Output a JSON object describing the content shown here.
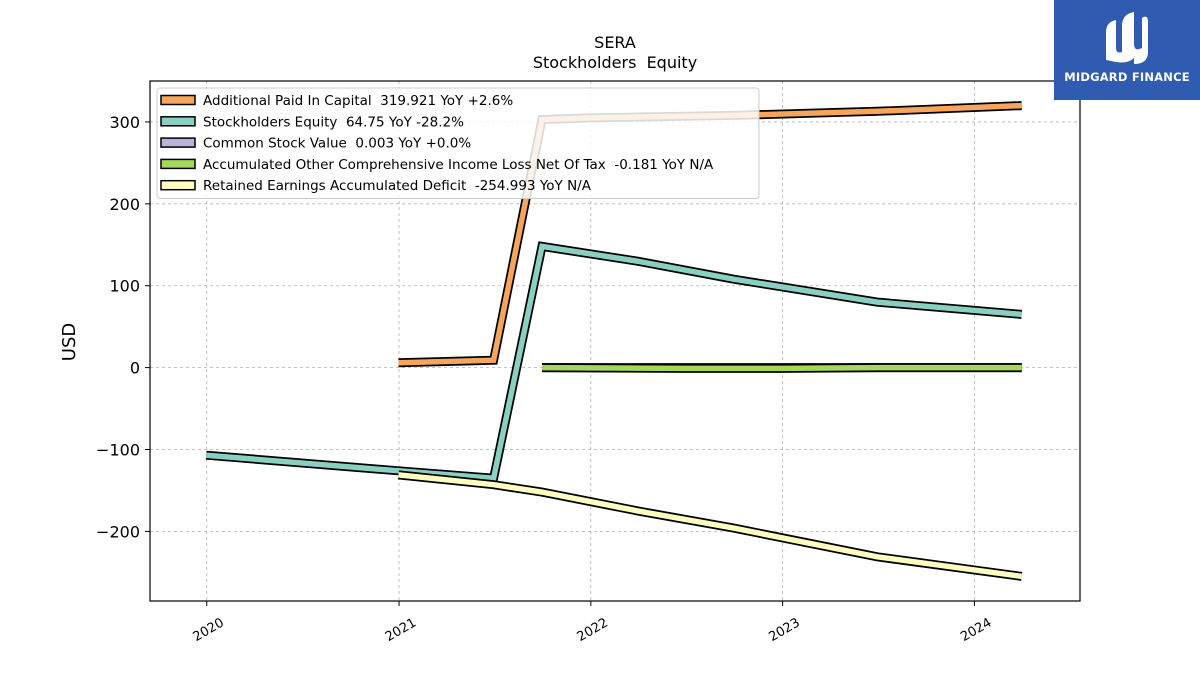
{
  "logo": {
    "text": "MIDGARD FINANCE"
  },
  "chart_data": {
    "type": "line",
    "title": "SERA",
    "subtitle": "Stockholders  Equity",
    "ylabel": "USD",
    "xlabel": "",
    "xlim": [
      "2019-09-15",
      "2024-07-20"
    ],
    "ylim": [
      -285,
      350
    ],
    "x_ticks": [
      "2020-01-01",
      "2021-01-01",
      "2022-01-01",
      "2023-01-01",
      "2024-01-01"
    ],
    "x_tick_labels": [
      "2020",
      "2021",
      "2022",
      "2023",
      "2024"
    ],
    "y_ticks": [
      -200,
      -100,
      0,
      100,
      200,
      300
    ],
    "y_tick_labels": [
      "−200",
      "−100",
      "0",
      "100",
      "200",
      "300"
    ],
    "grid": true,
    "legend_position": "top-left",
    "series": [
      {
        "name": "Additional Paid In Capital",
        "legend": "Additional Paid In Capital  319.921 YoY +2.6%",
        "color": "#f5a55c",
        "x": [
          "2020-12-31",
          "2021-06-30",
          "2021-09-30",
          "2021-12-31",
          "2022-09-30",
          "2023-06-30",
          "2024-03-31"
        ],
        "y": [
          6,
          9,
          303,
          305,
          308,
          313,
          320
        ]
      },
      {
        "name": "Stockholders Equity",
        "legend": "Stockholders Equity  64.75 YoY -28.2%",
        "color": "#87d0c2",
        "x": [
          "2019-12-31",
          "2020-12-31",
          "2021-06-30",
          "2021-09-30",
          "2022-03-31",
          "2022-09-30",
          "2023-06-30",
          "2024-03-31"
        ],
        "y": [
          -107,
          -126,
          -135,
          148,
          130,
          108,
          80,
          65
        ]
      },
      {
        "name": "Common Stock Value",
        "legend": "Common Stock Value  0.003 YoY +0.0%",
        "color": "#b7b4d6",
        "x": [
          "2021-09-30",
          "2024-03-31"
        ],
        "y": [
          0.003,
          0.003
        ]
      },
      {
        "name": "Accumulated Other Comprehensive Income Loss Net Of Tax",
        "legend": "Accumulated Other Comprehensive Income Loss Net Of Tax  -0.181 YoY N/A",
        "color": "#a6d75b",
        "x": [
          "2021-09-30",
          "2022-06-30",
          "2022-12-31",
          "2023-06-30",
          "2024-03-31"
        ],
        "y": [
          0,
          -1,
          -1,
          0,
          0
        ]
      },
      {
        "name": "Retained Earnings Accumulated Deficit",
        "legend": "Retained Earnings Accumulated Deficit  -254.993 YoY N/A",
        "color": "#fefebe",
        "x": [
          "2020-12-31",
          "2021-06-30",
          "2021-09-30",
          "2022-03-31",
          "2022-09-30",
          "2023-06-30",
          "2024-03-31"
        ],
        "y": [
          -131,
          -143,
          -152,
          -175,
          -196,
          -231,
          -255
        ]
      }
    ]
  }
}
